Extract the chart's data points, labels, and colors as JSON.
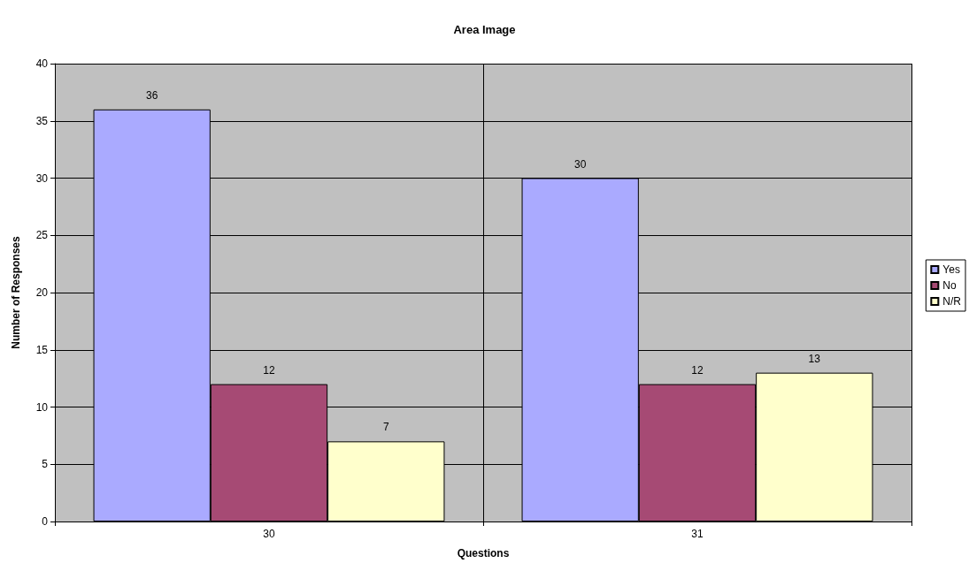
{
  "chart_data": {
    "type": "bar",
    "title": "Area Image",
    "xlabel": "Questions",
    "ylabel": "Number of Responses",
    "categories": [
      "30",
      "31"
    ],
    "series": [
      {
        "name": "Yes",
        "color": "#aaaaff",
        "values": [
          36,
          30
        ]
      },
      {
        "name": "No",
        "color": "#a64a74",
        "values": [
          12,
          12
        ]
      },
      {
        "name": "N/R",
        "color": "#ffffcc",
        "values": [
          7,
          13
        ]
      }
    ],
    "ylim": [
      0,
      40
    ],
    "yticks": [
      0,
      5,
      10,
      15,
      20,
      25,
      30,
      35,
      40
    ],
    "grid": true,
    "legend": "right",
    "data_labels": true
  }
}
